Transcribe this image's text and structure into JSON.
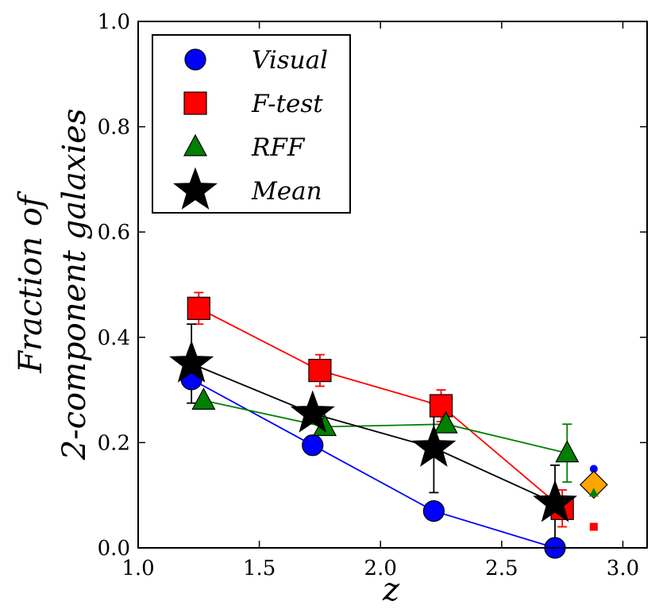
{
  "chart_data": {
    "type": "line",
    "title": "",
    "xlabel": "z",
    "ylabel": [
      "Fraction of",
      "2-component galaxies"
    ],
    "xlim": [
      1.0,
      3.1
    ],
    "ylim": [
      0.0,
      1.0
    ],
    "xticks": [
      1.0,
      1.5,
      2.0,
      2.5,
      3.0
    ],
    "yticks": [
      0.0,
      0.2,
      0.4,
      0.6,
      0.8,
      1.0
    ],
    "xtick_labels": [
      "1.0",
      "1.5",
      "2.0",
      "2.5",
      "3.0"
    ],
    "ytick_labels": [
      "0.0",
      "0.2",
      "0.4",
      "0.6",
      "0.8",
      "1.0"
    ],
    "legend_position": "upper-left",
    "series": [
      {
        "name": "Visual",
        "marker": "circle",
        "color": "#0000ff",
        "x": [
          1.22,
          1.72,
          2.22,
          2.72
        ],
        "y": [
          0.32,
          0.195,
          0.07,
          0.0
        ],
        "err": [
          0,
          0.018,
          0,
          0
        ]
      },
      {
        "name": "F-test",
        "marker": "square",
        "color": "#ff0000",
        "x": [
          1.25,
          1.75,
          2.25,
          2.75
        ],
        "y": [
          0.455,
          0.337,
          0.27,
          0.075
        ],
        "err": [
          0.03,
          0.03,
          0.03,
          0.035
        ]
      },
      {
        "name": "RFF",
        "marker": "triangle",
        "color": "#008000",
        "x": [
          1.27,
          1.77,
          2.27,
          2.77
        ],
        "y": [
          0.28,
          0.23,
          0.235,
          0.18
        ],
        "err": [
          0,
          0,
          0,
          0.055
        ]
      },
      {
        "name": "Mean",
        "marker": "star",
        "color": "#000000",
        "x": [
          1.22,
          1.72,
          2.22,
          2.72
        ],
        "y": [
          0.35,
          0.255,
          0.19,
          0.085
        ],
        "err": [
          0.075,
          0,
          0.085,
          0.072
        ]
      }
    ],
    "extra_markers": [
      {
        "name": "blue-dot",
        "marker": "circle-small",
        "color": "#0000ff",
        "x": 2.88,
        "y": 0.15
      },
      {
        "name": "orange-diamond",
        "marker": "diamond",
        "color": "#ffa500",
        "x": 2.88,
        "y": 0.12
      },
      {
        "name": "green-small-triangle",
        "marker": "triangle-small",
        "color": "#008000",
        "x": 2.88,
        "y": 0.105
      },
      {
        "name": "red-small-square",
        "marker": "square-small",
        "color": "#ff0000",
        "x": 2.88,
        "y": 0.04
      }
    ]
  },
  "legend": {
    "items": [
      {
        "label": "Visual"
      },
      {
        "label": "F-test"
      },
      {
        "label": "RFF"
      },
      {
        "label": "Mean"
      }
    ]
  }
}
